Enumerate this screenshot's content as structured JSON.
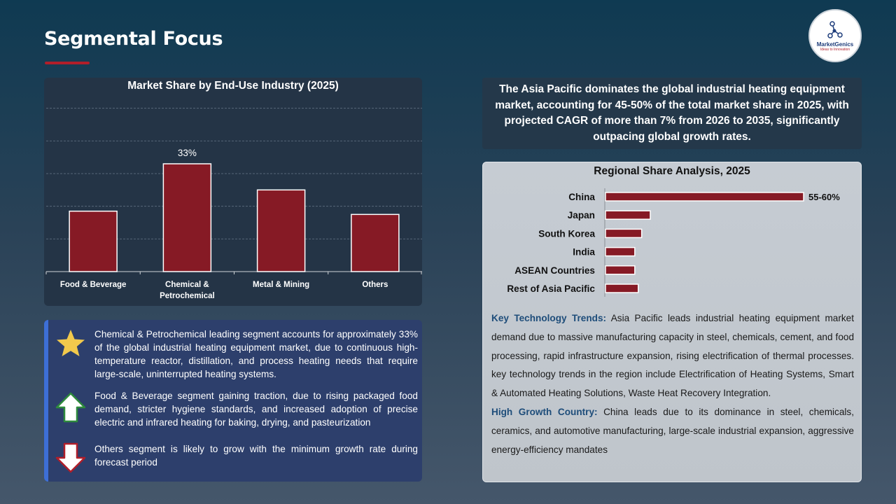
{
  "page": {
    "title": "Segmental Focus"
  },
  "logo": {
    "name": "MarketGenics",
    "tagline": "Ideas to Innovation"
  },
  "colors": {
    "bar": "#861a25",
    "accent_red": "#b01e2a",
    "bullet_border": "#3d6fd6",
    "star": "#f2c94c",
    "arrow_up": "#2e8b3d"
  },
  "chart_data": [
    {
      "type": "bar",
      "title": "Market Share by End-Use Industry (2025)",
      "categories": [
        "Food & Beverage",
        "Chemical & Petrochemical",
        "Metal & Mining",
        "Others"
      ],
      "category_lines": [
        [
          "Food & Beverage"
        ],
        [
          "Chemical &",
          "Petrochemical"
        ],
        [
          "Metal & Mining"
        ],
        [
          "Others"
        ]
      ],
      "values": [
        18.5,
        33,
        25,
        17.5
      ],
      "data_labels": [
        "",
        "33%",
        "",
        ""
      ],
      "ylim": [
        0,
        60
      ],
      "grid": true
    },
    {
      "type": "bar",
      "orientation": "horizontal",
      "title": "Regional Share Analysis, 2025",
      "categories": [
        "China",
        "Japan",
        "South Korea",
        "India",
        "ASEAN Countries",
        "Rest of Asia Pacific"
      ],
      "values": [
        57.5,
        13,
        10.5,
        8.5,
        8.5,
        9.5
      ],
      "data_labels": [
        "55-60%",
        "",
        "",
        "",
        "",
        ""
      ],
      "xlim": [
        0,
        60
      ],
      "grid": false
    }
  ],
  "bullets": [
    {
      "icon": "star-icon",
      "text": "Chemical & Petrochemical leading segment accounts for approximately 33% of the global industrial heating equipment market, due to continuous high-temperature reactor, distillation, and process heating needs that require large-scale, uninterrupted heating systems."
    },
    {
      "icon": "arrow-up-icon",
      "text": "Food & Beverage segment gaining traction, due to rising packaged food demand, stricter hygiene standards, and increased adoption of precise electric and infrared heating for baking, drying, and pasteurization"
    },
    {
      "icon": "arrow-down-icon",
      "text": "Others segment is likely to grow with the minimum growth rate during forecast period"
    }
  ],
  "headline": "The Asia Pacific dominates the global industrial heating equipment market, accounting for 45-50% of the total market share in 2025, with projected CAGR of more than 7% from 2026 to 2035, significantly outpacing global growth rates.",
  "trends": {
    "key_label": "Key Technology Trends:",
    "key_text": " Asia Pacific leads industrial heating equipment market demand due to massive manufacturing capacity in steel, chemicals, cement, and food processing, rapid infrastructure expansion, rising electrification of thermal processes. key technology trends in the region include Electrification of Heating Systems, Smart & Automated Heating Solutions, Waste Heat Recovery Integration.",
    "growth_label": "High Growth Country:",
    "growth_text": " China leads due to its dominance in steel, chemicals, ceramics, and automotive manufacturing, large-scale industrial expansion, aggressive energy-efficiency mandates"
  }
}
